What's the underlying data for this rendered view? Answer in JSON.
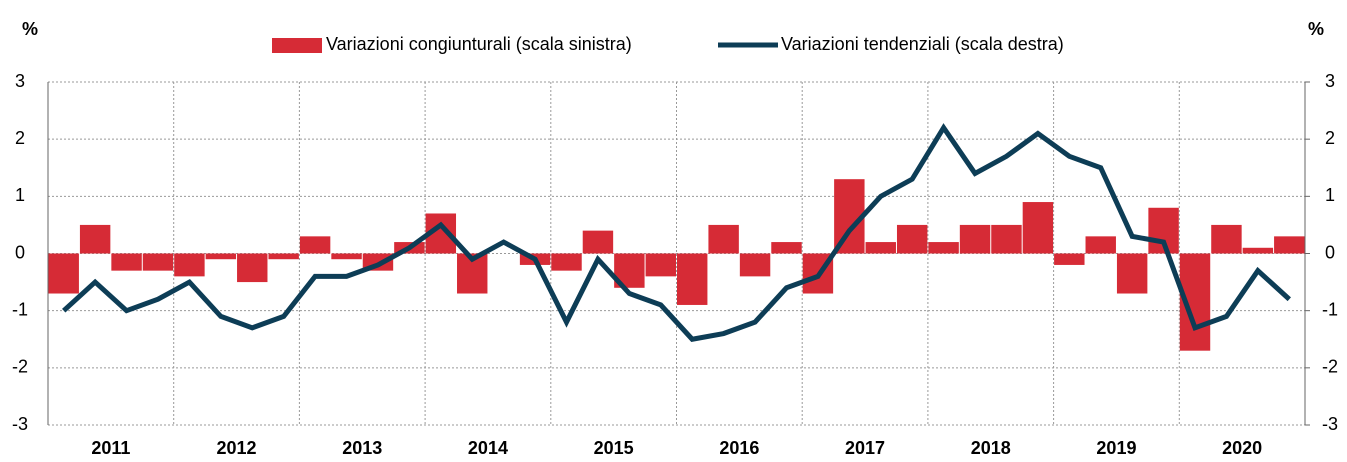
{
  "chart_data": {
    "type": "bar_line",
    "y_label": "%",
    "y2_label": "%",
    "groups": [
      "2011",
      "2012",
      "2013",
      "2014",
      "2015",
      "2016",
      "2017",
      "2018",
      "2019",
      "2020"
    ],
    "categories": [
      null,
      null,
      null,
      null,
      null,
      null,
      null,
      null,
      null,
      null,
      null,
      null,
      null,
      null,
      null,
      null,
      null,
      null,
      null,
      null,
      null,
      null,
      null,
      null,
      null,
      null,
      null,
      null,
      null,
      null,
      null,
      null,
      null,
      null,
      null,
      null,
      null,
      null,
      null,
      null
    ],
    "series": [
      {
        "name": "Variazioni congiunturali (scala sinistra)",
        "type": "bar",
        "axis": "y",
        "color": "#d62b36",
        "values": [
          -0.7,
          0.5,
          -0.3,
          -0.3,
          -0.4,
          -0.1,
          -0.5,
          -0.1,
          0.3,
          -0.1,
          -0.3,
          0.2,
          0.7,
          -0.7,
          0.0,
          -0.2,
          -0.3,
          0.4,
          -0.6,
          -0.4,
          -0.9,
          0.5,
          -0.4,
          0.2,
          -0.7,
          1.3,
          0.2,
          0.5,
          0.2,
          0.5,
          0.5,
          0.9,
          -0.2,
          0.3,
          -0.7,
          0.8,
          -1.7,
          0.5,
          0.1,
          0.3
        ]
      },
      {
        "name": "Variazioni tendenziali (scala destra)",
        "type": "line",
        "axis": "y2",
        "color": "#0d3d56",
        "values": [
          -1.0,
          -0.5,
          -1.0,
          -0.8,
          -0.5,
          -1.1,
          -1.3,
          -1.1,
          -0.4,
          -0.4,
          -0.2,
          0.1,
          0.5,
          -0.1,
          0.2,
          -0.1,
          -1.2,
          -0.1,
          -0.7,
          -0.9,
          -1.5,
          -1.4,
          -1.2,
          -0.6,
          -0.4,
          0.4,
          1.0,
          1.3,
          2.2,
          1.4,
          1.7,
          2.1,
          1.7,
          1.5,
          0.3,
          0.2,
          -1.3,
          -1.1,
          -0.3,
          -0.8
        ]
      }
    ],
    "ylim": [
      -3,
      3
    ],
    "yticks": [
      -3,
      -2,
      -1,
      0,
      1,
      2,
      3
    ],
    "y2lim": [
      -3,
      3
    ],
    "y2ticks": [
      -3,
      -2,
      -1,
      0,
      1,
      2,
      3
    ],
    "grid": true
  }
}
